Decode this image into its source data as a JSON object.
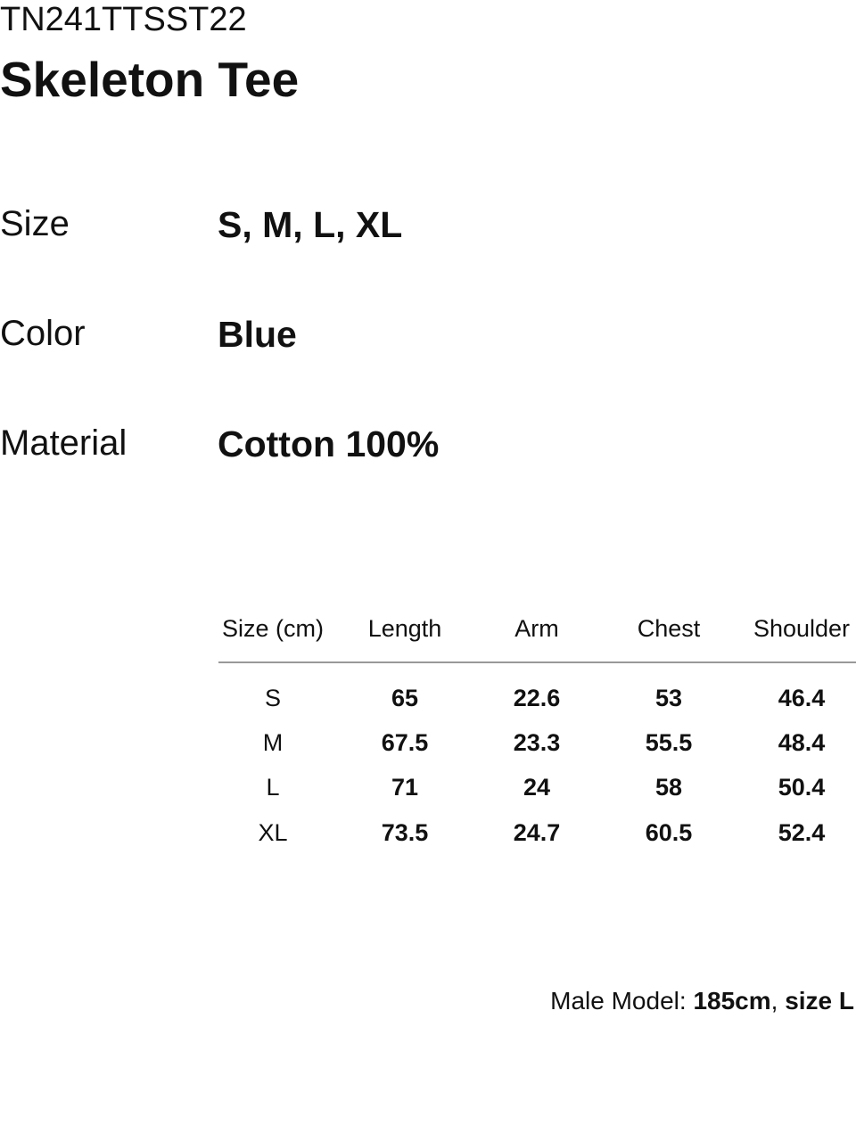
{
  "product_code": "TN241TTSST22",
  "product_name": "Skeleton Tee",
  "specs": [
    {
      "label": "Size",
      "value": "S, M, L, XL"
    },
    {
      "label": "Color",
      "value": "Blue"
    },
    {
      "label": "Material",
      "value": "Cotton 100%"
    }
  ],
  "size_table": {
    "headers": [
      "Size (cm)",
      "Length",
      "Arm",
      "Chest",
      "Shoulder"
    ],
    "rows": [
      [
        "S",
        "65",
        "22.6",
        "53",
        "46.4"
      ],
      [
        "M",
        "67.5",
        "23.3",
        "55.5",
        "48.4"
      ],
      [
        "L",
        "71",
        "24",
        "58",
        "50.4"
      ],
      [
        "XL",
        "73.5",
        "24.7",
        "60.5",
        "52.4"
      ]
    ]
  },
  "model_note": {
    "label": "Male Model: ",
    "height": "185cm",
    "sep": ", ",
    "size": "size L"
  }
}
